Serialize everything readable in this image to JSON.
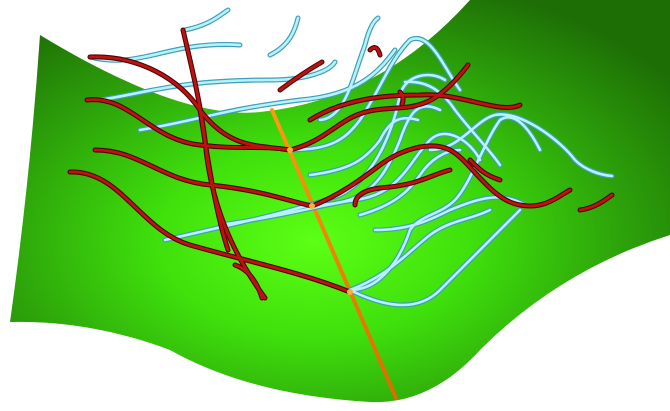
{
  "scene": {
    "surface_color_highlight": "#55ff10",
    "surface_color_mid": "#2fb80c",
    "surface_color_edge": "#1e7a06",
    "red_curve_color": "#b30f0f",
    "red_curve_shadow": "#5a0707",
    "cyan_curve_color": "#8fe2f0",
    "cyan_curve_shadow": "#3e9fb8",
    "axis_color": "#ff8a00",
    "background_color": "#ffffff"
  }
}
